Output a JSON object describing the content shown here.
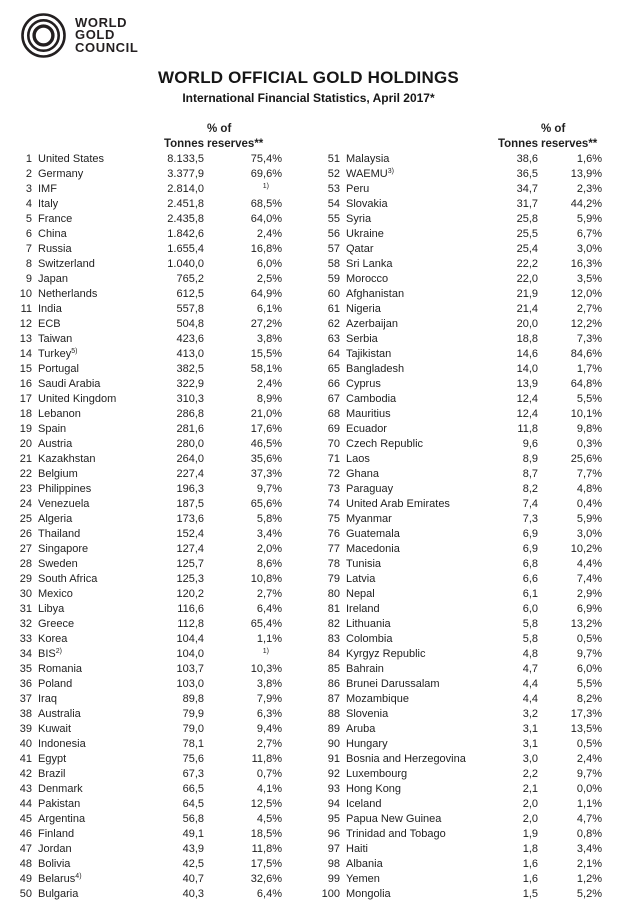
{
  "logo": {
    "lines": [
      "WORLD",
      "GOLD",
      "COUNCIL"
    ],
    "color": "#231f20"
  },
  "title": "WORLD OFFICIAL GOLD HOLDINGS",
  "subtitle": "International Financial Statistics, April 2017*",
  "table": {
    "headers": {
      "pct_line1": "% of",
      "tonnes": "Tonnes",
      "reserves": "reserves**"
    },
    "left_rows": [
      {
        "rank": "1",
        "name": "United States",
        "tonnes": "8.133,5",
        "pct": "75,4%"
      },
      {
        "rank": "2",
        "name": "Germany",
        "tonnes": "3.377,9",
        "pct": "69,6%"
      },
      {
        "rank": "3",
        "name": "IMF",
        "tonnes": "2.814,0",
        "pct": "",
        "pct_sup": "1)"
      },
      {
        "rank": "4",
        "name": "Italy",
        "tonnes": "2.451,8",
        "pct": "68,5%"
      },
      {
        "rank": "5",
        "name": "France",
        "tonnes": "2.435,8",
        "pct": "64,0%"
      },
      {
        "rank": "6",
        "name": "China",
        "tonnes": "1.842,6",
        "pct": "2,4%"
      },
      {
        "rank": "7",
        "name": "Russia",
        "tonnes": "1.655,4",
        "pct": "16,8%"
      },
      {
        "rank": "8",
        "name": "Switzerland",
        "tonnes": "1.040,0",
        "pct": "6,0%"
      },
      {
        "rank": "9",
        "name": "Japan",
        "tonnes": "765,2",
        "pct": "2,5%"
      },
      {
        "rank": "10",
        "name": "Netherlands",
        "tonnes": "612,5",
        "pct": "64,9%"
      },
      {
        "rank": "11",
        "name": "India",
        "tonnes": "557,8",
        "pct": "6,1%"
      },
      {
        "rank": "12",
        "name": "ECB",
        "tonnes": "504,8",
        "pct": "27,2%"
      },
      {
        "rank": "13",
        "name": "Taiwan",
        "tonnes": "423,6",
        "pct": "3,8%"
      },
      {
        "rank": "14",
        "name": "Turkey",
        "name_sup": "5)",
        "tonnes": "413,0",
        "pct": "15,5%"
      },
      {
        "rank": "15",
        "name": "Portugal",
        "tonnes": "382,5",
        "pct": "58,1%"
      },
      {
        "rank": "16",
        "name": "Saudi Arabia",
        "tonnes": "322,9",
        "pct": "2,4%"
      },
      {
        "rank": "17",
        "name": "United Kingdom",
        "tonnes": "310,3",
        "pct": "8,9%"
      },
      {
        "rank": "18",
        "name": "Lebanon",
        "tonnes": "286,8",
        "pct": "21,0%"
      },
      {
        "rank": "19",
        "name": "Spain",
        "tonnes": "281,6",
        "pct": "17,6%"
      },
      {
        "rank": "20",
        "name": "Austria",
        "tonnes": "280,0",
        "pct": "46,5%"
      },
      {
        "rank": "21",
        "name": "Kazakhstan",
        "tonnes": "264,0",
        "pct": "35,6%"
      },
      {
        "rank": "22",
        "name": "Belgium",
        "tonnes": "227,4",
        "pct": "37,3%"
      },
      {
        "rank": "23",
        "name": "Philippines",
        "tonnes": "196,3",
        "pct": "9,7%"
      },
      {
        "rank": "24",
        "name": "Venezuela",
        "tonnes": "187,5",
        "pct": "65,6%"
      },
      {
        "rank": "25",
        "name": "Algeria",
        "tonnes": "173,6",
        "pct": "5,8%"
      },
      {
        "rank": "26",
        "name": "Thailand",
        "tonnes": "152,4",
        "pct": "3,4%"
      },
      {
        "rank": "27",
        "name": "Singapore",
        "tonnes": "127,4",
        "pct": "2,0%"
      },
      {
        "rank": "28",
        "name": "Sweden",
        "tonnes": "125,7",
        "pct": "8,6%"
      },
      {
        "rank": "29",
        "name": "South Africa",
        "tonnes": "125,3",
        "pct": "10,8%"
      },
      {
        "rank": "30",
        "name": "Mexico",
        "tonnes": "120,2",
        "pct": "2,7%"
      },
      {
        "rank": "31",
        "name": "Libya",
        "tonnes": "116,6",
        "pct": "6,4%"
      },
      {
        "rank": "32",
        "name": "Greece",
        "tonnes": "112,8",
        "pct": "65,4%"
      },
      {
        "rank": "33",
        "name": "Korea",
        "tonnes": "104,4",
        "pct": "1,1%"
      },
      {
        "rank": "34",
        "name": "BIS",
        "name_sup": "2)",
        "tonnes": "104,0",
        "pct": "",
        "pct_sup": "1)"
      },
      {
        "rank": "35",
        "name": "Romania",
        "tonnes": "103,7",
        "pct": "10,3%"
      },
      {
        "rank": "36",
        "name": "Poland",
        "tonnes": "103,0",
        "pct": "3,8%"
      },
      {
        "rank": "37",
        "name": "Iraq",
        "tonnes": "89,8",
        "pct": "7,9%"
      },
      {
        "rank": "38",
        "name": "Australia",
        "tonnes": "79,9",
        "pct": "6,3%"
      },
      {
        "rank": "39",
        "name": "Kuwait",
        "tonnes": "79,0",
        "pct": "9,4%"
      },
      {
        "rank": "40",
        "name": "Indonesia",
        "tonnes": "78,1",
        "pct": "2,7%"
      },
      {
        "rank": "41",
        "name": "Egypt",
        "tonnes": "75,6",
        "pct": "11,8%"
      },
      {
        "rank": "42",
        "name": "Brazil",
        "tonnes": "67,3",
        "pct": "0,7%"
      },
      {
        "rank": "43",
        "name": "Denmark",
        "tonnes": "66,5",
        "pct": "4,1%"
      },
      {
        "rank": "44",
        "name": "Pakistan",
        "tonnes": "64,5",
        "pct": "12,5%"
      },
      {
        "rank": "45",
        "name": "Argentina",
        "tonnes": "56,8",
        "pct": "4,5%"
      },
      {
        "rank": "46",
        "name": "Finland",
        "tonnes": "49,1",
        "pct": "18,5%"
      },
      {
        "rank": "47",
        "name": "Jordan",
        "tonnes": "43,9",
        "pct": "11,8%"
      },
      {
        "rank": "48",
        "name": "Bolivia",
        "tonnes": "42,5",
        "pct": "17,5%"
      },
      {
        "rank": "49",
        "name": "Belarus",
        "name_sup": "4)",
        "tonnes": "40,7",
        "pct": "32,6%"
      },
      {
        "rank": "50",
        "name": "Bulgaria",
        "tonnes": "40,3",
        "pct": "6,4%"
      }
    ],
    "right_rows": [
      {
        "rank": "51",
        "name": "Malaysia",
        "tonnes": "38,6",
        "pct": "1,6%"
      },
      {
        "rank": "52",
        "name": "WAEMU",
        "name_sup": "3)",
        "tonnes": "36,5",
        "pct": "13,9%"
      },
      {
        "rank": "53",
        "name": "Peru",
        "tonnes": "34,7",
        "pct": "2,3%"
      },
      {
        "rank": "54",
        "name": "Slovakia",
        "tonnes": "31,7",
        "pct": "44,2%"
      },
      {
        "rank": "55",
        "name": "Syria",
        "tonnes": "25,8",
        "pct": "5,9%"
      },
      {
        "rank": "56",
        "name": "Ukraine",
        "tonnes": "25,5",
        "pct": "6,7%"
      },
      {
        "rank": "57",
        "name": "Qatar",
        "tonnes": "25,4",
        "pct": "3,0%"
      },
      {
        "rank": "58",
        "name": "Sri Lanka",
        "tonnes": "22,2",
        "pct": "16,3%"
      },
      {
        "rank": "59",
        "name": "Morocco",
        "tonnes": "22,0",
        "pct": "3,5%"
      },
      {
        "rank": "60",
        "name": "Afghanistan",
        "tonnes": "21,9",
        "pct": "12,0%"
      },
      {
        "rank": "61",
        "name": "Nigeria",
        "tonnes": "21,4",
        "pct": "2,7%"
      },
      {
        "rank": "62",
        "name": "Azerbaijan",
        "tonnes": "20,0",
        "pct": "12,2%"
      },
      {
        "rank": "63",
        "name": "Serbia",
        "tonnes": "18,8",
        "pct": "7,3%"
      },
      {
        "rank": "64",
        "name": "Tajikistan",
        "tonnes": "14,6",
        "pct": "84,6%"
      },
      {
        "rank": "65",
        "name": "Bangladesh",
        "tonnes": "14,0",
        "pct": "1,7%"
      },
      {
        "rank": "66",
        "name": "Cyprus",
        "tonnes": "13,9",
        "pct": "64,8%"
      },
      {
        "rank": "67",
        "name": "Cambodia",
        "tonnes": "12,4",
        "pct": "5,5%"
      },
      {
        "rank": "68",
        "name": "Mauritius",
        "tonnes": "12,4",
        "pct": "10,1%"
      },
      {
        "rank": "69",
        "name": "Ecuador",
        "tonnes": "11,8",
        "pct": "9,8%"
      },
      {
        "rank": "70",
        "name": "Czech Republic",
        "tonnes": "9,6",
        "pct": "0,3%"
      },
      {
        "rank": "71",
        "name": "Laos",
        "tonnes": "8,9",
        "pct": "25,6%"
      },
      {
        "rank": "72",
        "name": "Ghana",
        "tonnes": "8,7",
        "pct": "7,7%"
      },
      {
        "rank": "73",
        "name": "Paraguay",
        "tonnes": "8,2",
        "pct": "4,8%"
      },
      {
        "rank": "74",
        "name": "United Arab Emirates",
        "tonnes": "7,4",
        "pct": "0,4%"
      },
      {
        "rank": "75",
        "name": "Myanmar",
        "tonnes": "7,3",
        "pct": "5,9%"
      },
      {
        "rank": "76",
        "name": "Guatemala",
        "tonnes": "6,9",
        "pct": "3,0%"
      },
      {
        "rank": "77",
        "name": "Macedonia",
        "tonnes": "6,9",
        "pct": "10,2%"
      },
      {
        "rank": "78",
        "name": "Tunisia",
        "tonnes": "6,8",
        "pct": "4,4%"
      },
      {
        "rank": "79",
        "name": "Latvia",
        "tonnes": "6,6",
        "pct": "7,4%"
      },
      {
        "rank": "80",
        "name": "Nepal",
        "tonnes": "6,1",
        "pct": "2,9%"
      },
      {
        "rank": "81",
        "name": "Ireland",
        "tonnes": "6,0",
        "pct": "6,9%"
      },
      {
        "rank": "82",
        "name": "Lithuania",
        "tonnes": "5,8",
        "pct": "13,2%"
      },
      {
        "rank": "83",
        "name": "Colombia",
        "tonnes": "5,8",
        "pct": "0,5%"
      },
      {
        "rank": "84",
        "name": "Kyrgyz Republic",
        "tonnes": "4,8",
        "pct": "9,7%"
      },
      {
        "rank": "85",
        "name": "Bahrain",
        "tonnes": "4,7",
        "pct": "6,0%"
      },
      {
        "rank": "86",
        "name": "Brunei Darussalam",
        "tonnes": "4,4",
        "pct": "5,5%"
      },
      {
        "rank": "87",
        "name": "Mozambique",
        "tonnes": "4,4",
        "pct": "8,2%"
      },
      {
        "rank": "88",
        "name": "Slovenia",
        "tonnes": "3,2",
        "pct": "17,3%"
      },
      {
        "rank": "89",
        "name": "Aruba",
        "tonnes": "3,1",
        "pct": "13,5%"
      },
      {
        "rank": "90",
        "name": "Hungary",
        "tonnes": "3,1",
        "pct": "0,5%"
      },
      {
        "rank": "91",
        "name": "Bosnia and Herzegovina",
        "tonnes": "3,0",
        "pct": "2,4%"
      },
      {
        "rank": "92",
        "name": "Luxembourg",
        "tonnes": "2,2",
        "pct": "9,7%"
      },
      {
        "rank": "93",
        "name": "Hong Kong",
        "tonnes": "2,1",
        "pct": "0,0%"
      },
      {
        "rank": "94",
        "name": "Iceland",
        "tonnes": "2,0",
        "pct": "1,1%"
      },
      {
        "rank": "95",
        "name": "Papua New Guinea",
        "tonnes": "2,0",
        "pct": "4,7%"
      },
      {
        "rank": "96",
        "name": "Trinidad and Tobago",
        "tonnes": "1,9",
        "pct": "0,8%"
      },
      {
        "rank": "97",
        "name": "Haiti",
        "tonnes": "1,8",
        "pct": "3,4%"
      },
      {
        "rank": "98",
        "name": "Albania",
        "tonnes": "1,6",
        "pct": "2,1%"
      },
      {
        "rank": "99",
        "name": "Yemen",
        "tonnes": "1,6",
        "pct": "1,2%"
      },
      {
        "rank": "100",
        "name": "Mongolia",
        "tonnes": "1,5",
        "pct": "5,2%"
      }
    ]
  }
}
